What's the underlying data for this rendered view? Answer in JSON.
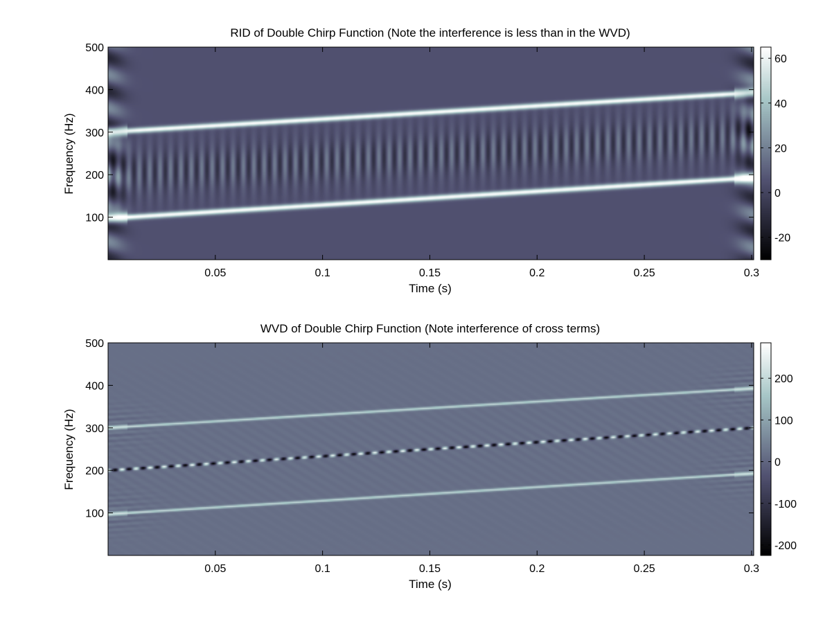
{
  "chart_data": [
    {
      "type": "heatmap",
      "title": "RID of Double Chirp Function (Note the interference is less than in the WVD)",
      "xlabel": "Time (s)",
      "ylabel": "Frequency (Hz)",
      "xlim": [
        0.0,
        0.301
      ],
      "ylim": [
        0,
        500
      ],
      "xticks": [
        0.05,
        0.1,
        0.15,
        0.2,
        0.25,
        0.3
      ],
      "xtick_labels": [
        "0.05",
        "0.1",
        "0.15",
        "0.2",
        "0.25",
        "0.3"
      ],
      "yticks": [
        100,
        200,
        300,
        400,
        500
      ],
      "ytick_labels": [
        "100",
        "200",
        "300",
        "400",
        "500"
      ],
      "colorbar": {
        "range": [
          -30,
          65
        ],
        "ticks": [
          -20,
          0,
          20,
          40,
          60
        ],
        "tick_labels": [
          "-20",
          "0",
          "20",
          "40",
          "60"
        ],
        "background_value": 5
      },
      "components": [
        {
          "kind": "chirp",
          "f_start": 300,
          "f_end": 393,
          "t_start": 0.0,
          "t_end": 0.301,
          "peak": 60
        },
        {
          "kind": "chirp",
          "f_start": 97,
          "f_end": 193,
          "t_start": 0.0,
          "t_end": 0.301,
          "peak": 60
        },
        {
          "kind": "interference",
          "f_center_start": 200,
          "f_center_end": 293,
          "amplitude": 14
        }
      ],
      "colormap": "bone"
    },
    {
      "type": "heatmap",
      "title": "WVD of Double Chirp Function (Note interference of cross terms)",
      "xlabel": "Time (s)",
      "ylabel": "Frequency (Hz)",
      "xlim": [
        0.0,
        0.301
      ],
      "ylim": [
        0,
        500
      ],
      "xticks": [
        0.05,
        0.1,
        0.15,
        0.2,
        0.25,
        0.3
      ],
      "xtick_labels": [
        "0.05",
        "0.1",
        "0.15",
        "0.2",
        "0.25",
        "0.3"
      ],
      "yticks": [
        100,
        200,
        300,
        400,
        500
      ],
      "ytick_labels": [
        "100",
        "200",
        "300",
        "400",
        "500"
      ],
      "colorbar": {
        "range": [
          -225,
          285
        ],
        "ticks": [
          -200,
          -100,
          0,
          100,
          200
        ],
        "tick_labels": [
          "-200",
          "-100",
          "0",
          "100",
          "200"
        ],
        "background_value": 15
      },
      "components": [
        {
          "kind": "chirp",
          "f_start": 300,
          "f_end": 393,
          "t_start": 0.0,
          "t_end": 0.301,
          "peak": 180
        },
        {
          "kind": "chirp",
          "f_start": 97,
          "f_end": 193,
          "t_start": 0.0,
          "t_end": 0.301,
          "peak": 180
        },
        {
          "kind": "cross_term",
          "f_start": 200,
          "f_end": 300,
          "t_start": 0.0,
          "t_end": 0.301,
          "amplitude": 260
        }
      ],
      "colormap": "bone"
    }
  ]
}
